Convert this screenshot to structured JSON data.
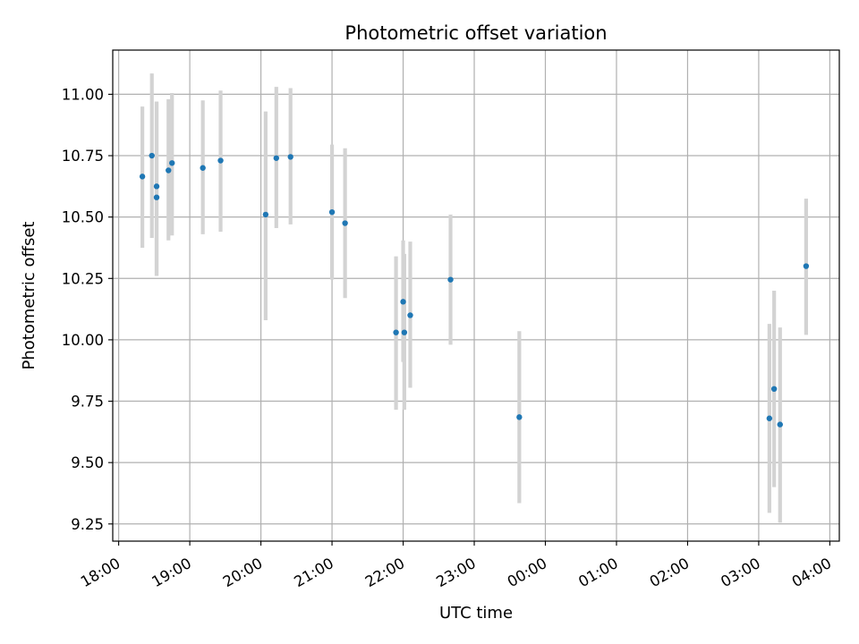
{
  "chart_data": {
    "type": "scatter",
    "title": "Photometric offset variation",
    "xlabel": "UTC time",
    "ylabel": "Photometric offset",
    "grid": true,
    "xlim": [
      "17:55",
      "04:08"
    ],
    "ylim": [
      9.18,
      11.18
    ],
    "x_ticks": [
      "18:00",
      "19:00",
      "20:00",
      "21:00",
      "22:00",
      "23:00",
      "00:00",
      "01:00",
      "02:00",
      "03:00",
      "04:00"
    ],
    "y_ticks": [
      "9.25",
      "9.50",
      "9.75",
      "10.00",
      "10.25",
      "10.50",
      "10.75",
      "11.00"
    ],
    "colors": {
      "point": "#1f77b4",
      "errorbar": "#d3d3d3",
      "grid": "#b0b0b0"
    },
    "points": [
      {
        "x": "18:20",
        "y": 10.665,
        "err_low": 10.375,
        "err_high": 10.95
      },
      {
        "x": "18:28",
        "y": 10.75,
        "err_low": 10.415,
        "err_high": 11.085
      },
      {
        "x": "18:32",
        "y": 10.625,
        "err_low": 10.26,
        "err_high": 10.97
      },
      {
        "x": "18:32",
        "y": 10.58,
        "err_low": 10.26,
        "err_high": 10.97
      },
      {
        "x": "18:42",
        "y": 10.69,
        "err_low": 10.405,
        "err_high": 10.98
      },
      {
        "x": "18:45",
        "y": 10.72,
        "err_low": 10.425,
        "err_high": 11.005
      },
      {
        "x": "19:11",
        "y": 10.7,
        "err_low": 10.43,
        "err_high": 10.975
      },
      {
        "x": "19:26",
        "y": 10.73,
        "err_low": 10.44,
        "err_high": 11.015
      },
      {
        "x": "20:04",
        "y": 10.51,
        "err_low": 10.08,
        "err_high": 10.93
      },
      {
        "x": "20:13",
        "y": 10.74,
        "err_low": 10.455,
        "err_high": 11.03
      },
      {
        "x": "20:25",
        "y": 10.745,
        "err_low": 10.47,
        "err_high": 11.025
      },
      {
        "x": "21:00",
        "y": 10.52,
        "err_low": 10.245,
        "err_high": 10.795
      },
      {
        "x": "21:11",
        "y": 10.475,
        "err_low": 10.17,
        "err_high": 10.78
      },
      {
        "x": "21:54",
        "y": 10.03,
        "err_low": 9.715,
        "err_high": 10.34
      },
      {
        "x": "22:00",
        "y": 10.155,
        "err_low": 9.91,
        "err_high": 10.405
      },
      {
        "x": "22:01",
        "y": 10.03,
        "err_low": 9.715,
        "err_high": 10.35
      },
      {
        "x": "22:06",
        "y": 10.1,
        "err_low": 9.805,
        "err_high": 10.4
      },
      {
        "x": "22:40",
        "y": 10.245,
        "err_low": 9.98,
        "err_high": 10.51
      },
      {
        "x": "23:38",
        "y": 9.685,
        "err_low": 9.335,
        "err_high": 10.035
      },
      {
        "x": "03:09",
        "y": 9.68,
        "err_low": 9.295,
        "err_high": 10.065
      },
      {
        "x": "03:13",
        "y": 9.8,
        "err_low": 9.4,
        "err_high": 10.2
      },
      {
        "x": "03:18",
        "y": 9.655,
        "err_low": 9.255,
        "err_high": 10.05
      },
      {
        "x": "03:40",
        "y": 10.3,
        "err_low": 10.02,
        "err_high": 10.575
      }
    ]
  }
}
